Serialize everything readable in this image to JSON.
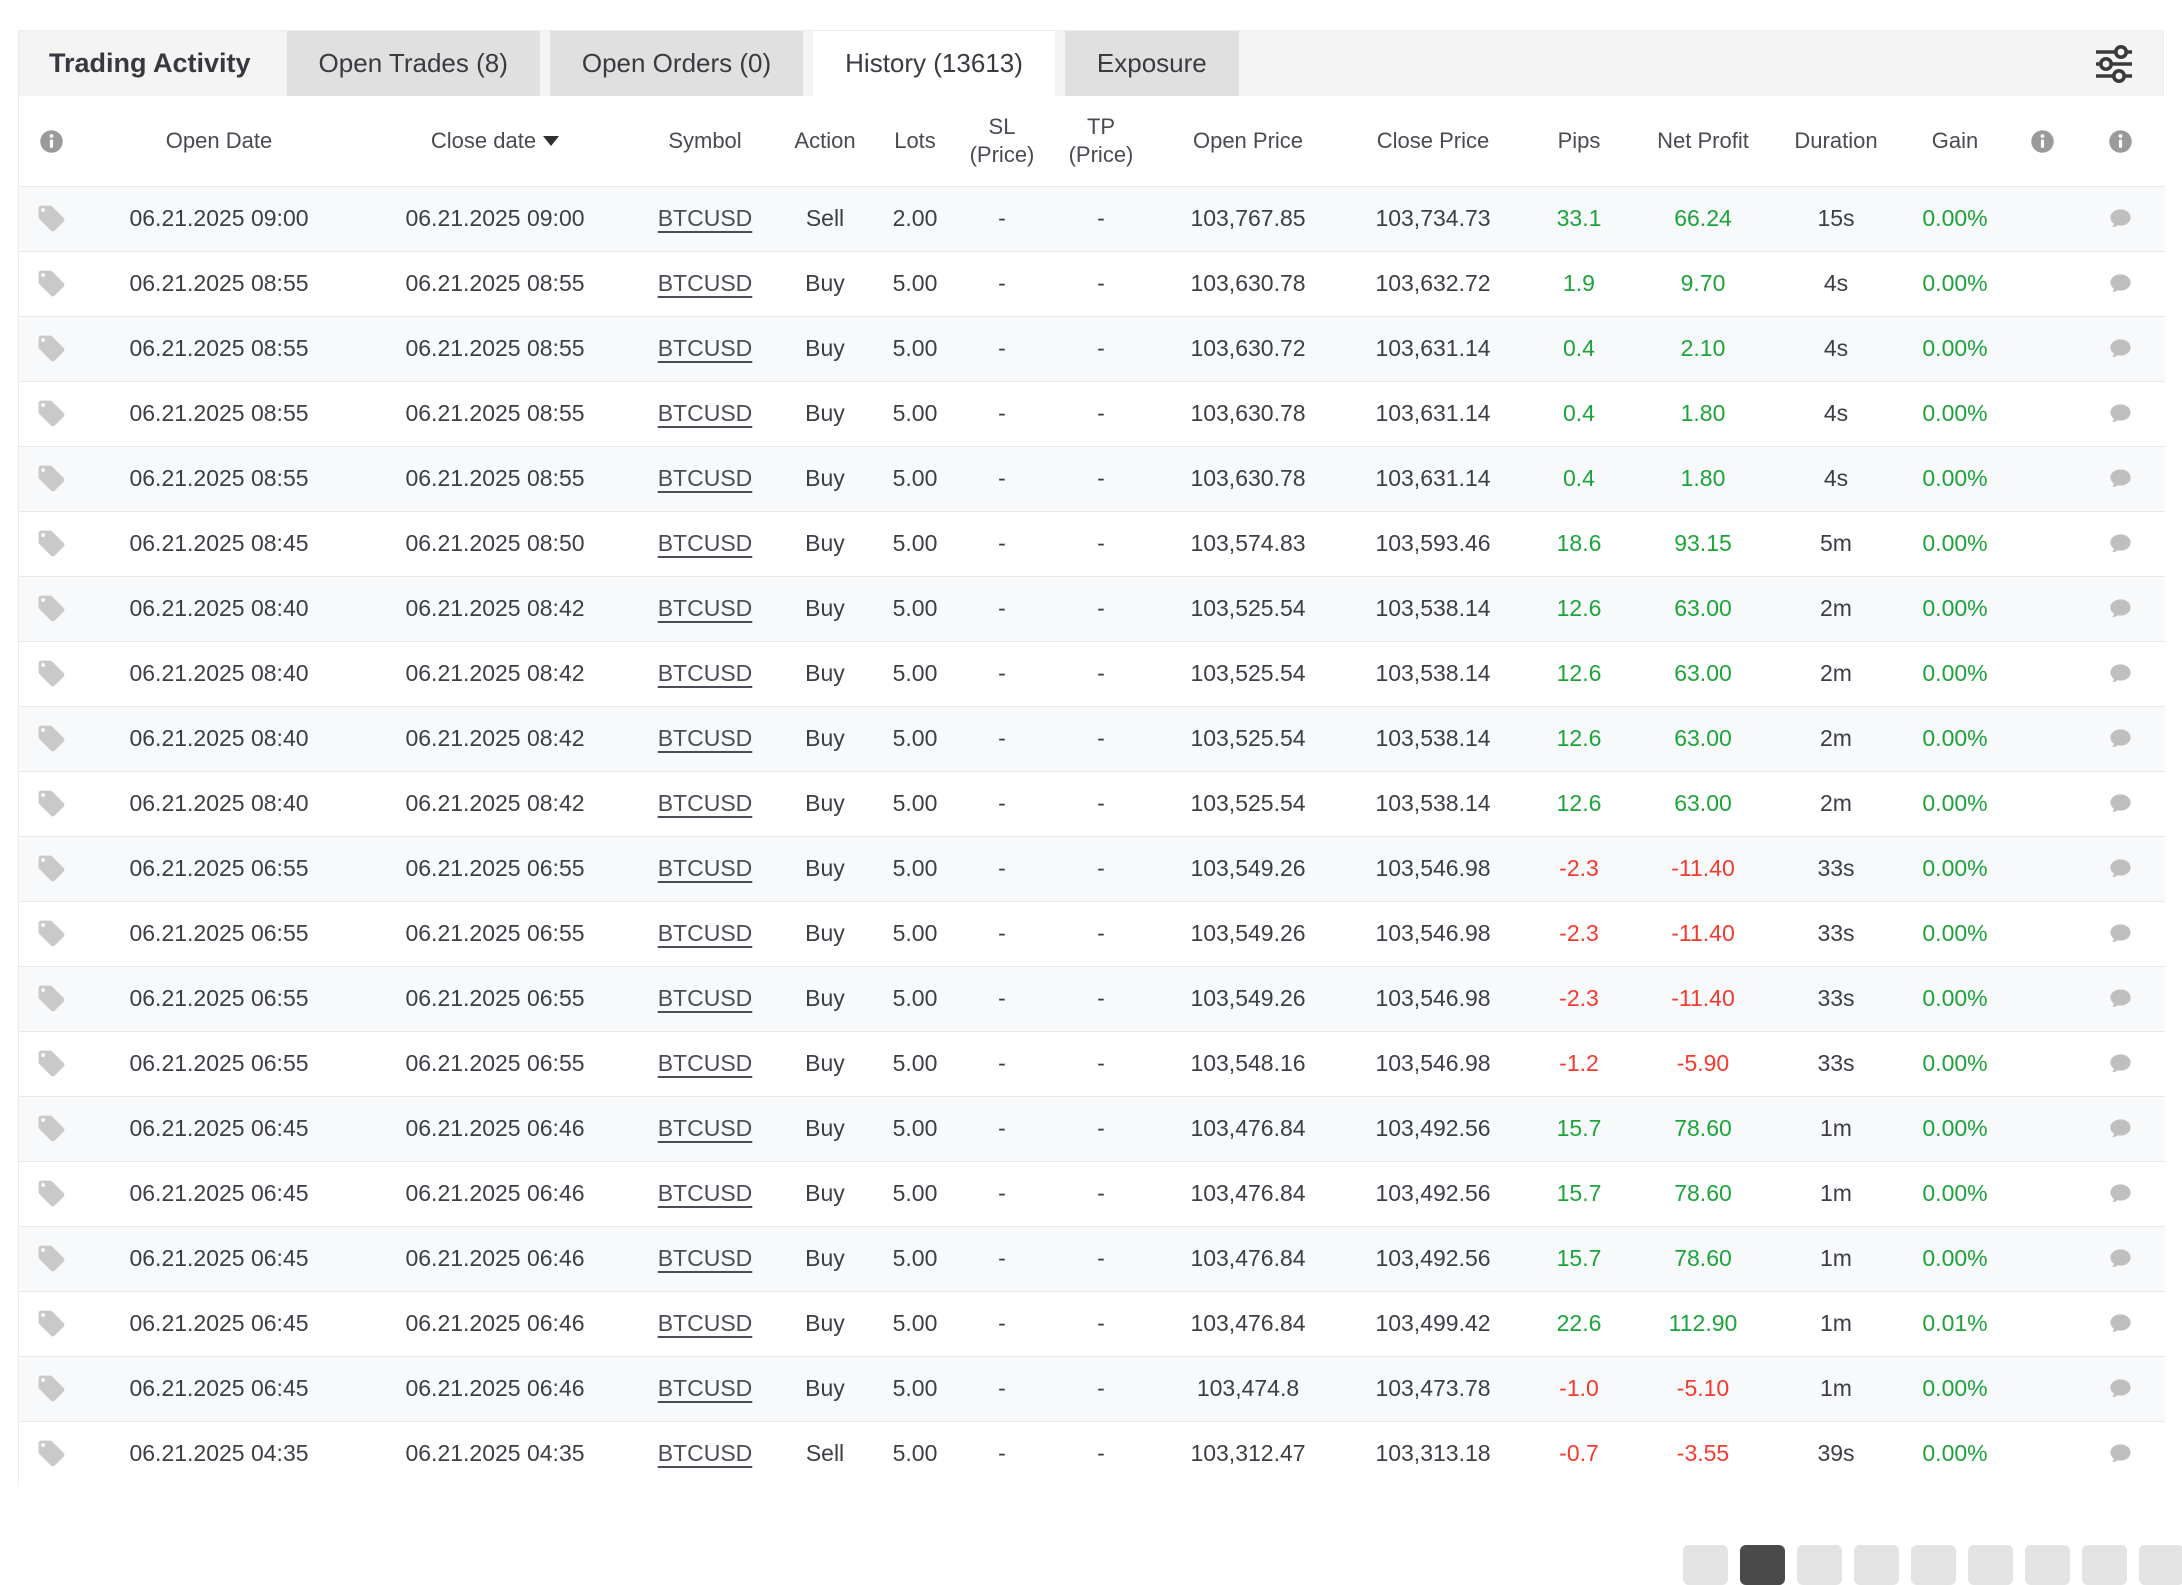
{
  "header": {
    "title": "Trading Activity",
    "tabs": [
      {
        "label": "Open Trades (8)",
        "active": false
      },
      {
        "label": "Open Orders (0)",
        "active": false
      },
      {
        "label": "History (13613)",
        "active": true
      },
      {
        "label": "Exposure",
        "active": false
      }
    ],
    "filter_icon": "filter-sliders-icon"
  },
  "table": {
    "columns": {
      "row_info_icon": "info-icon",
      "open_date": "Open Date",
      "close_date": "Close date",
      "close_date_sort_icon": "sort-desc-icon",
      "symbol": "Symbol",
      "action": "Action",
      "lots": "Lots",
      "sl_top": "SL",
      "sl_bottom": "(Price)",
      "tp_top": "TP",
      "tp_bottom": "(Price)",
      "open_price": "Open Price",
      "close_price": "Close Price",
      "pips": "Pips",
      "net_profit": "Net Profit",
      "duration": "Duration",
      "gain": "Gain",
      "trail_info_icon_1": "info-icon",
      "trail_info_icon_2": "info-icon"
    },
    "row_icons": {
      "tag": "tag-icon",
      "comment": "comment-icon"
    },
    "rows": [
      {
        "open_date": "06.21.2025 09:00",
        "close_date": "06.21.2025 09:00",
        "symbol": "BTCUSD",
        "action": "Sell",
        "lots": "2.00",
        "sl": "-",
        "tp": "-",
        "open_price": "103,767.85",
        "close_price": "103,734.73",
        "pips": "33.1",
        "net_profit": "66.24",
        "duration": "15s",
        "gain": "0.00%"
      },
      {
        "open_date": "06.21.2025 08:55",
        "close_date": "06.21.2025 08:55",
        "symbol": "BTCUSD",
        "action": "Buy",
        "lots": "5.00",
        "sl": "-",
        "tp": "-",
        "open_price": "103,630.78",
        "close_price": "103,632.72",
        "pips": "1.9",
        "net_profit": "9.70",
        "duration": "4s",
        "gain": "0.00%"
      },
      {
        "open_date": "06.21.2025 08:55",
        "close_date": "06.21.2025 08:55",
        "symbol": "BTCUSD",
        "action": "Buy",
        "lots": "5.00",
        "sl": "-",
        "tp": "-",
        "open_price": "103,630.72",
        "close_price": "103,631.14",
        "pips": "0.4",
        "net_profit": "2.10",
        "duration": "4s",
        "gain": "0.00%"
      },
      {
        "open_date": "06.21.2025 08:55",
        "close_date": "06.21.2025 08:55",
        "symbol": "BTCUSD",
        "action": "Buy",
        "lots": "5.00",
        "sl": "-",
        "tp": "-",
        "open_price": "103,630.78",
        "close_price": "103,631.14",
        "pips": "0.4",
        "net_profit": "1.80",
        "duration": "4s",
        "gain": "0.00%"
      },
      {
        "open_date": "06.21.2025 08:55",
        "close_date": "06.21.2025 08:55",
        "symbol": "BTCUSD",
        "action": "Buy",
        "lots": "5.00",
        "sl": "-",
        "tp": "-",
        "open_price": "103,630.78",
        "close_price": "103,631.14",
        "pips": "0.4",
        "net_profit": "1.80",
        "duration": "4s",
        "gain": "0.00%"
      },
      {
        "open_date": "06.21.2025 08:45",
        "close_date": "06.21.2025 08:50",
        "symbol": "BTCUSD",
        "action": "Buy",
        "lots": "5.00",
        "sl": "-",
        "tp": "-",
        "open_price": "103,574.83",
        "close_price": "103,593.46",
        "pips": "18.6",
        "net_profit": "93.15",
        "duration": "5m",
        "gain": "0.00%"
      },
      {
        "open_date": "06.21.2025 08:40",
        "close_date": "06.21.2025 08:42",
        "symbol": "BTCUSD",
        "action": "Buy",
        "lots": "5.00",
        "sl": "-",
        "tp": "-",
        "open_price": "103,525.54",
        "close_price": "103,538.14",
        "pips": "12.6",
        "net_profit": "63.00",
        "duration": "2m",
        "gain": "0.00%"
      },
      {
        "open_date": "06.21.2025 08:40",
        "close_date": "06.21.2025 08:42",
        "symbol": "BTCUSD",
        "action": "Buy",
        "lots": "5.00",
        "sl": "-",
        "tp": "-",
        "open_price": "103,525.54",
        "close_price": "103,538.14",
        "pips": "12.6",
        "net_profit": "63.00",
        "duration": "2m",
        "gain": "0.00%"
      },
      {
        "open_date": "06.21.2025 08:40",
        "close_date": "06.21.2025 08:42",
        "symbol": "BTCUSD",
        "action": "Buy",
        "lots": "5.00",
        "sl": "-",
        "tp": "-",
        "open_price": "103,525.54",
        "close_price": "103,538.14",
        "pips": "12.6",
        "net_profit": "63.00",
        "duration": "2m",
        "gain": "0.00%"
      },
      {
        "open_date": "06.21.2025 08:40",
        "close_date": "06.21.2025 08:42",
        "symbol": "BTCUSD",
        "action": "Buy",
        "lots": "5.00",
        "sl": "-",
        "tp": "-",
        "open_price": "103,525.54",
        "close_price": "103,538.14",
        "pips": "12.6",
        "net_profit": "63.00",
        "duration": "2m",
        "gain": "0.00%"
      },
      {
        "open_date": "06.21.2025 06:55",
        "close_date": "06.21.2025 06:55",
        "symbol": "BTCUSD",
        "action": "Buy",
        "lots": "5.00",
        "sl": "-",
        "tp": "-",
        "open_price": "103,549.26",
        "close_price": "103,546.98",
        "pips": "-2.3",
        "net_profit": "-11.40",
        "duration": "33s",
        "gain": "0.00%"
      },
      {
        "open_date": "06.21.2025 06:55",
        "close_date": "06.21.2025 06:55",
        "symbol": "BTCUSD",
        "action": "Buy",
        "lots": "5.00",
        "sl": "-",
        "tp": "-",
        "open_price": "103,549.26",
        "close_price": "103,546.98",
        "pips": "-2.3",
        "net_profit": "-11.40",
        "duration": "33s",
        "gain": "0.00%"
      },
      {
        "open_date": "06.21.2025 06:55",
        "close_date": "06.21.2025 06:55",
        "symbol": "BTCUSD",
        "action": "Buy",
        "lots": "5.00",
        "sl": "-",
        "tp": "-",
        "open_price": "103,549.26",
        "close_price": "103,546.98",
        "pips": "-2.3",
        "net_profit": "-11.40",
        "duration": "33s",
        "gain": "0.00%"
      },
      {
        "open_date": "06.21.2025 06:55",
        "close_date": "06.21.2025 06:55",
        "symbol": "BTCUSD",
        "action": "Buy",
        "lots": "5.00",
        "sl": "-",
        "tp": "-",
        "open_price": "103,548.16",
        "close_price": "103,546.98",
        "pips": "-1.2",
        "net_profit": "-5.90",
        "duration": "33s",
        "gain": "0.00%"
      },
      {
        "open_date": "06.21.2025 06:45",
        "close_date": "06.21.2025 06:46",
        "symbol": "BTCUSD",
        "action": "Buy",
        "lots": "5.00",
        "sl": "-",
        "tp": "-",
        "open_price": "103,476.84",
        "close_price": "103,492.56",
        "pips": "15.7",
        "net_profit": "78.60",
        "duration": "1m",
        "gain": "0.00%"
      },
      {
        "open_date": "06.21.2025 06:45",
        "close_date": "06.21.2025 06:46",
        "symbol": "BTCUSD",
        "action": "Buy",
        "lots": "5.00",
        "sl": "-",
        "tp": "-",
        "open_price": "103,476.84",
        "close_price": "103,492.56",
        "pips": "15.7",
        "net_profit": "78.60",
        "duration": "1m",
        "gain": "0.00%"
      },
      {
        "open_date": "06.21.2025 06:45",
        "close_date": "06.21.2025 06:46",
        "symbol": "BTCUSD",
        "action": "Buy",
        "lots": "5.00",
        "sl": "-",
        "tp": "-",
        "open_price": "103,476.84",
        "close_price": "103,492.56",
        "pips": "15.7",
        "net_profit": "78.60",
        "duration": "1m",
        "gain": "0.00%"
      },
      {
        "open_date": "06.21.2025 06:45",
        "close_date": "06.21.2025 06:46",
        "symbol": "BTCUSD",
        "action": "Buy",
        "lots": "5.00",
        "sl": "-",
        "tp": "-",
        "open_price": "103,476.84",
        "close_price": "103,499.42",
        "pips": "22.6",
        "net_profit": "112.90",
        "duration": "1m",
        "gain": "0.01%"
      },
      {
        "open_date": "06.21.2025 06:45",
        "close_date": "06.21.2025 06:46",
        "symbol": "BTCUSD",
        "action": "Buy",
        "lots": "5.00",
        "sl": "-",
        "tp": "-",
        "open_price": "103,474.8",
        "close_price": "103,473.78",
        "pips": "-1.0",
        "net_profit": "-5.10",
        "duration": "1m",
        "gain": "0.00%"
      },
      {
        "open_date": "06.21.2025 04:35",
        "close_date": "06.21.2025 04:35",
        "symbol": "BTCUSD",
        "action": "Sell",
        "lots": "5.00",
        "sl": "-",
        "tp": "-",
        "open_price": "103,312.47",
        "close_price": "103,313.18",
        "pips": "-0.7",
        "net_profit": "-3.55",
        "duration": "39s",
        "gain": "0.00%"
      }
    ]
  },
  "colors": {
    "positive": "#1CA43B",
    "negative": "#F5392E",
    "tab_bg": "#e0e0e0",
    "band_bg": "#f4f4f4",
    "stripe_bg": "#f7f9fa"
  },
  "pagination": {
    "button_count": 9,
    "active_button": 2
  }
}
